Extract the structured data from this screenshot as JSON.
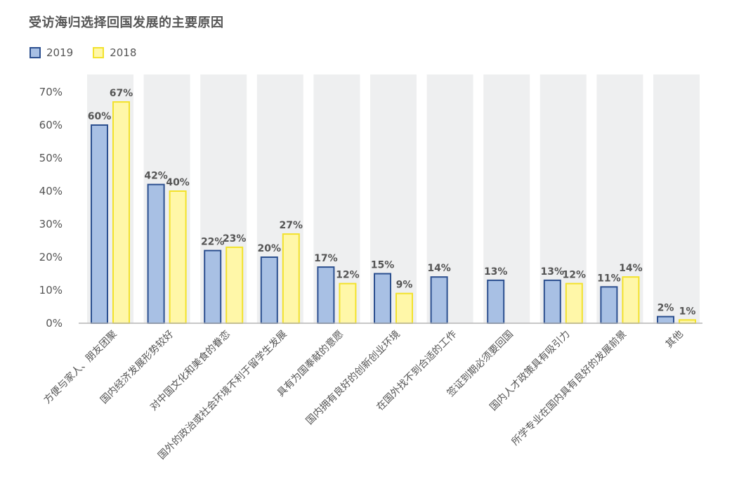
{
  "chart_data": {
    "type": "bar",
    "title": "受访海归选择回国发展的主要原因",
    "xlabel": "",
    "ylabel": "",
    "ylim": [
      0,
      70
    ],
    "yticks": [
      "0%",
      "10%",
      "20%",
      "30%",
      "40%",
      "50%",
      "60%",
      "70%"
    ],
    "legend_position": "top-left",
    "categories": [
      "方便与家人、朋友团聚",
      "国内经济发展形势较好",
      "对中国文化和美食的眷恋",
      "国外的政治或社会环境不利于留学生发展",
      "具有为国奉献的意愿",
      "国内拥有良好的创新创业环境",
      "在国外找不到合适的工作",
      "签证到期必须要回国",
      "国内人才政策具有吸引力",
      "所学专业在国内具有良好的发展前景",
      "其他"
    ],
    "series": [
      {
        "name": "2019",
        "color": "#a8c0e4",
        "border": "#2b4f8f",
        "values": [
          60,
          42,
          22,
          20,
          17,
          15,
          14,
          13,
          13,
          11,
          2
        ],
        "labels": [
          "60%",
          "42%",
          "22%",
          "20%",
          "17%",
          "15%",
          "14%",
          "13%",
          "13%",
          "11%",
          "2%"
        ]
      },
      {
        "name": "2018",
        "color": "#fff7a8",
        "border": "#f2e22c",
        "values": [
          67,
          40,
          23,
          27,
          12,
          9,
          null,
          null,
          12,
          14,
          1
        ],
        "labels": [
          "67%",
          "40%",
          "23%",
          "27%",
          "12%",
          "9%",
          "",
          "",
          "12%",
          "14%",
          "1%"
        ]
      }
    ],
    "column_background": "#eeeff0",
    "axis_color": "#b5b5b5"
  }
}
